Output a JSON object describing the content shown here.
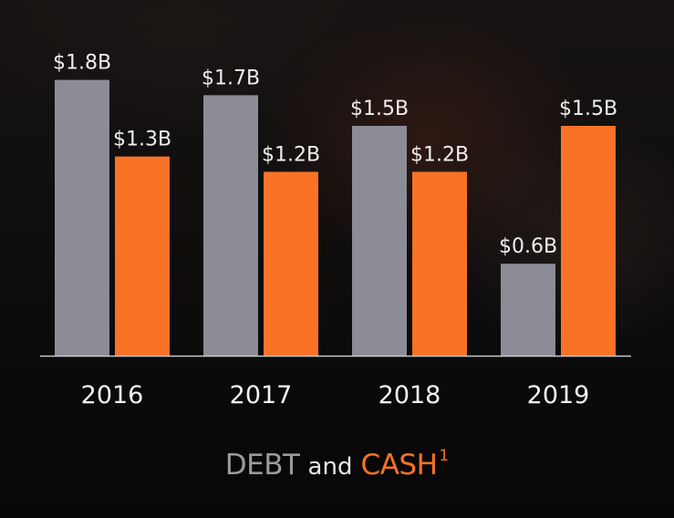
{
  "chart_data": {
    "type": "bar",
    "categories": [
      "2016",
      "2017",
      "2018",
      "2019"
    ],
    "series": [
      {
        "name": "DEBT",
        "color": "#8c8c96",
        "values": [
          1.8,
          1.7,
          1.5,
          0.6
        ],
        "labels": [
          "$1.8B",
          "$1.7B",
          "$1.5B",
          "$0.6B"
        ]
      },
      {
        "name": "CASH",
        "color": "#f97226",
        "values": [
          1.3,
          1.2,
          1.2,
          1.5
        ],
        "labels": [
          "$1.3B",
          "$1.2B",
          "$1.2B",
          "$1.5B"
        ]
      }
    ],
    "title": {
      "debt": "DEBT",
      "and": "and",
      "cash": "CASH",
      "footnote_mark": "1"
    },
    "xlabel": "",
    "ylabel": "",
    "ylim": [
      0,
      1.8
    ],
    "grid": false,
    "legend": "none"
  },
  "colors": {
    "debt": "#8c8c96",
    "cash": "#f97226",
    "axis": "#c8c8c8",
    "caption_debt": "#9a9a9a",
    "caption_cash": "#f97226"
  }
}
